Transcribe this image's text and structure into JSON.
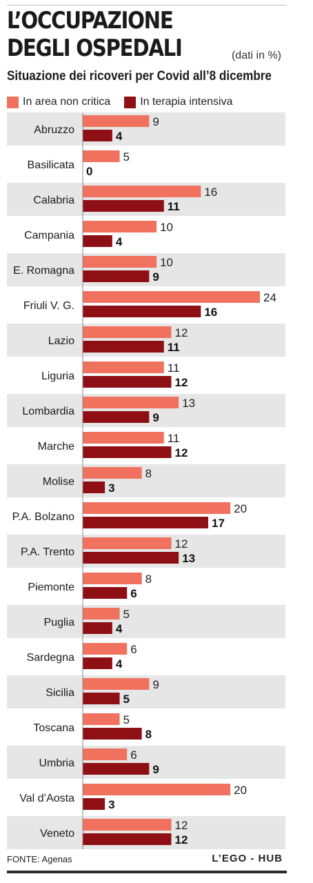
{
  "header": {
    "title_lines": [
      "L’OCCUPAZIONE",
      "DEGLI OSPEDALI"
    ],
    "unit_note": "(dati in %)",
    "subtitle": "Situazione dei ricoveri per Covid all’8 dicembre"
  },
  "colors": {
    "series_1": "#f0725e",
    "series_2": "#8e1014",
    "row_band": "#e6e6e6"
  },
  "footer": {
    "source": "FONTE: Agenas",
    "credit": "L’EGO - HUB"
  },
  "chart_data": {
    "type": "bar",
    "orientation": "horizontal",
    "value_unit": "%",
    "legend_position": "top-left",
    "grid": false,
    "xlim": [
      0,
      24
    ],
    "categories": [
      "Abruzzo",
      "Basilicata",
      "Calabria",
      "Campania",
      "E. Romagna",
      "Friuli V. G.",
      "Lazio",
      "Liguria",
      "Lombardia",
      "Marche",
      "Molise",
      "P.A. Bolzano",
      "P.A. Trento",
      "Piemonte",
      "Puglia",
      "Sardegna",
      "Sicilia",
      "Toscana",
      "Umbria",
      "Val d’Aosta",
      "Veneto"
    ],
    "series": [
      {
        "name": "In area non critica",
        "values": [
          9,
          5,
          16,
          10,
          10,
          24,
          12,
          11,
          13,
          11,
          8,
          20,
          12,
          8,
          5,
          6,
          9,
          5,
          6,
          20,
          12
        ]
      },
      {
        "name": "In terapia intensiva",
        "values": [
          4,
          0,
          11,
          4,
          9,
          16,
          11,
          12,
          9,
          12,
          3,
          17,
          13,
          6,
          4,
          4,
          5,
          8,
          9,
          3,
          12
        ]
      }
    ]
  }
}
